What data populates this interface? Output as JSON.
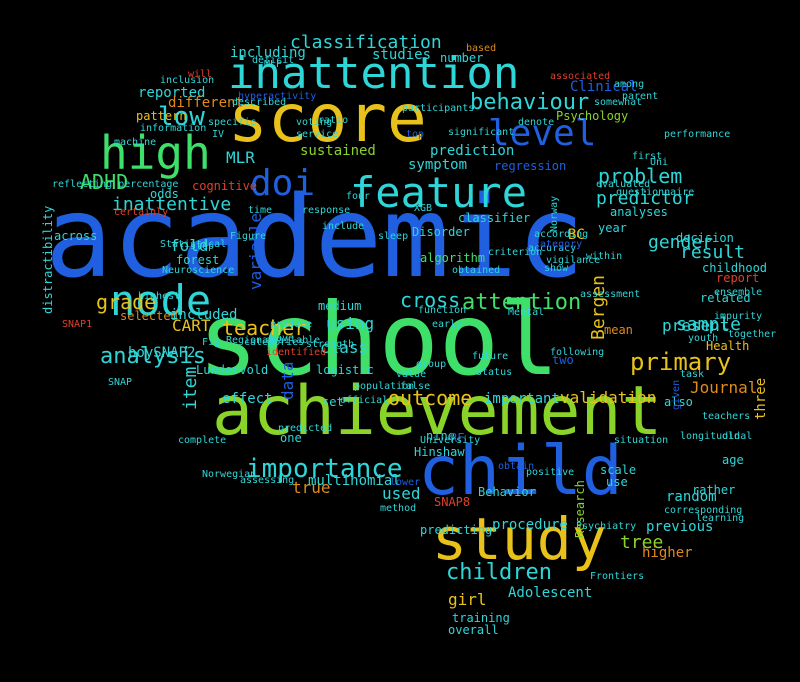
{
  "colors": {
    "background": "#000000",
    "blue": "#1f5fe0",
    "green": "#3fe06a",
    "cyan": "#2fd6d8",
    "lime": "#8ad42a",
    "yellow": "#e8c21a",
    "orange": "#e08a1a",
    "red": "#e0402a"
  },
  "words": [
    {
      "text": "academic",
      "color": "blue"
    },
    {
      "text": "school",
      "color": "green"
    },
    {
      "text": "score",
      "color": "yellow"
    },
    {
      "text": "achievement",
      "color": "lime"
    },
    {
      "text": "inattention",
      "color": "cyan"
    },
    {
      "text": "child",
      "color": "blue"
    },
    {
      "text": "study",
      "color": "yellow"
    },
    {
      "text": "high",
      "color": "green"
    },
    {
      "text": "feature",
      "color": "cyan"
    },
    {
      "text": "doi",
      "color": "blue"
    },
    {
      "text": "node",
      "color": "cyan"
    },
    {
      "text": "level",
      "color": "blue"
    },
    {
      "text": "importance",
      "color": "cyan"
    },
    {
      "text": "behaviour",
      "color": "cyan"
    },
    {
      "text": "primary",
      "color": "yellow"
    },
    {
      "text": "children",
      "color": "cyan"
    },
    {
      "text": "low",
      "color": "cyan"
    },
    {
      "text": "classification",
      "color": "cyan"
    },
    {
      "text": "ADHD",
      "color": "green"
    },
    {
      "text": "problem",
      "color": "cyan"
    },
    {
      "text": "predictor",
      "color": "cyan"
    },
    {
      "text": "analysis",
      "color": "cyan"
    },
    {
      "text": "grade",
      "color": "yellow"
    },
    {
      "text": "teacher",
      "color": "yellow"
    },
    {
      "text": "attention",
      "color": "green"
    },
    {
      "text": "sample",
      "color": "cyan"
    },
    {
      "text": "outcome",
      "color": "yellow"
    },
    {
      "text": "inattentive",
      "color": "cyan"
    },
    {
      "text": "cross",
      "color": "cyan"
    },
    {
      "text": "gender",
      "color": "cyan"
    },
    {
      "text": "result",
      "color": "cyan"
    },
    {
      "text": "tree",
      "color": "lime"
    },
    {
      "text": "present",
      "color": "cyan"
    },
    {
      "text": "validation",
      "color": "yellow"
    },
    {
      "text": "Bergen",
      "color": "yellow"
    },
    {
      "text": "item",
      "color": "cyan"
    },
    {
      "text": "fold",
      "color": "cyan"
    },
    {
      "text": "CART",
      "color": "yellow"
    },
    {
      "text": "class",
      "color": "cyan"
    },
    {
      "text": "using",
      "color": "cyan"
    },
    {
      "text": "variable",
      "color": "blue"
    },
    {
      "text": "data",
      "color": "blue"
    },
    {
      "text": "Journal",
      "color": "orange"
    },
    {
      "text": "true",
      "color": "orange"
    },
    {
      "text": "used",
      "color": "cyan"
    },
    {
      "text": "girl",
      "color": "yellow"
    },
    {
      "text": "effect",
      "color": "cyan"
    },
    {
      "text": "multinomial",
      "color": "cyan"
    },
    {
      "text": "important",
      "color": "cyan"
    },
    {
      "text": "reported",
      "color": "cyan"
    },
    {
      "text": "MLR",
      "color": "cyan"
    },
    {
      "text": "Adolescent",
      "color": "cyan"
    },
    {
      "text": "studies",
      "color": "cyan"
    },
    {
      "text": "Clinical",
      "color": "blue"
    },
    {
      "text": "Psychology",
      "color": "lime"
    },
    {
      "text": "different",
      "color": "orange"
    },
    {
      "text": "sustained",
      "color": "lime"
    },
    {
      "text": "symptom",
      "color": "cyan"
    },
    {
      "text": "prediction",
      "color": "cyan"
    },
    {
      "text": "regression",
      "color": "blue"
    },
    {
      "text": "classifier",
      "color": "cyan"
    },
    {
      "text": "Disorder",
      "color": "cyan"
    },
    {
      "text": "algorithm",
      "color": "green"
    },
    {
      "text": "decision",
      "color": "cyan"
    },
    {
      "text": "childhood",
      "color": "cyan"
    },
    {
      "text": "report",
      "color": "red"
    },
    {
      "text": "related",
      "color": "cyan"
    },
    {
      "text": "Health",
      "color": "yellow"
    },
    {
      "text": "random",
      "color": "cyan"
    },
    {
      "text": "age",
      "color": "cyan"
    },
    {
      "text": "three",
      "color": "yellow"
    },
    {
      "text": "higher",
      "color": "orange"
    },
    {
      "text": "previous",
      "color": "cyan"
    },
    {
      "text": "procedure",
      "color": "cyan"
    },
    {
      "text": "training",
      "color": "cyan"
    },
    {
      "text": "overall",
      "color": "cyan"
    },
    {
      "text": "odds",
      "color": "cyan"
    },
    {
      "text": "including",
      "color": "cyan"
    },
    {
      "text": "pattern",
      "color": "yellow"
    },
    {
      "text": "forest",
      "color": "cyan"
    },
    {
      "text": "selected",
      "color": "orange"
    },
    {
      "text": "included",
      "color": "cyan"
    },
    {
      "text": "boySNAP2",
      "color": "cyan"
    },
    {
      "text": "Lundervold",
      "color": "cyan"
    },
    {
      "text": "logistic",
      "color": "cyan"
    },
    {
      "text": "medium",
      "color": "cyan"
    },
    {
      "text": "set",
      "color": "cyan"
    },
    {
      "text": "one",
      "color": "cyan"
    },
    {
      "text": "nine",
      "color": "cyan"
    },
    {
      "text": "RF",
      "color": "blue"
    },
    {
      "text": "Hinshaw",
      "color": "cyan"
    },
    {
      "text": "two",
      "color": "blue"
    },
    {
      "text": "mean",
      "color": "orange"
    },
    {
      "text": "year",
      "color": "cyan"
    },
    {
      "text": "BC",
      "color": "yellow"
    },
    {
      "text": "analyses",
      "color": "cyan"
    },
    {
      "text": "SNAP8",
      "color": "red"
    },
    {
      "text": "Research",
      "color": "lime"
    },
    {
      "text": "predicting",
      "color": "cyan"
    },
    {
      "text": "scale",
      "color": "cyan"
    },
    {
      "text": "use",
      "color": "cyan"
    },
    {
      "text": "also",
      "color": "cyan"
    },
    {
      "text": "rather",
      "color": "cyan"
    },
    {
      "text": "Behavior",
      "color": "cyan"
    },
    {
      "text": "cognitive",
      "color": "red"
    },
    {
      "text": "distractibility",
      "color": "cyan"
    },
    {
      "text": "across",
      "color": "cyan"
    },
    {
      "text": "reflecting percentage",
      "color": "cyan"
    },
    {
      "text": "Statistical",
      "color": "cyan"
    },
    {
      "text": "Figure",
      "color": "cyan"
    },
    {
      "text": "Neuroscience",
      "color": "cyan"
    },
    {
      "text": "highest",
      "color": "cyan"
    },
    {
      "text": "hyperactivity",
      "color": "blue"
    },
    {
      "text": "ratio",
      "color": "cyan"
    },
    {
      "text": "will",
      "color": "red"
    },
    {
      "text": "deficit",
      "color": "cyan"
    },
    {
      "text": "number",
      "color": "cyan"
    },
    {
      "text": "information",
      "color": "cyan"
    },
    {
      "text": "inclusion",
      "color": "cyan"
    },
    {
      "text": "machine",
      "color": "cyan"
    },
    {
      "text": "significant",
      "color": "cyan"
    },
    {
      "text": "evaluated",
      "color": "cyan"
    },
    {
      "text": "questionnaire",
      "color": "cyan"
    },
    {
      "text": "performance",
      "color": "cyan"
    },
    {
      "text": "first",
      "color": "cyan"
    },
    {
      "text": "sleep",
      "color": "cyan"
    },
    {
      "text": "according",
      "color": "cyan"
    },
    {
      "text": "accuracy",
      "color": "cyan"
    },
    {
      "text": "vigilance",
      "color": "cyan"
    },
    {
      "text": "within",
      "color": "cyan"
    },
    {
      "text": "show",
      "color": "cyan"
    },
    {
      "text": "category",
      "color": "blue"
    },
    {
      "text": "assessment",
      "color": "cyan"
    },
    {
      "text": "Mental",
      "color": "cyan"
    },
    {
      "text": "early",
      "color": "cyan"
    },
    {
      "text": "function",
      "color": "cyan"
    },
    {
      "text": "future",
      "color": "cyan"
    },
    {
      "text": "group",
      "color": "cyan"
    },
    {
      "text": "status",
      "color": "cyan"
    },
    {
      "text": "value",
      "color": "cyan"
    },
    {
      "text": "false",
      "color": "cyan"
    },
    {
      "text": "population",
      "color": "cyan"
    },
    {
      "text": "official",
      "color": "cyan"
    },
    {
      "text": "University",
      "color": "cyan"
    },
    {
      "text": "positive",
      "color": "cyan"
    },
    {
      "text": "obtain",
      "color": "blue"
    },
    {
      "text": "categories",
      "color": "cyan"
    },
    {
      "text": "produce",
      "color": "cyan"
    },
    {
      "text": "available",
      "color": "cyan"
    },
    {
      "text": "identified",
      "color": "red"
    },
    {
      "text": "predicted",
      "color": "cyan"
    },
    {
      "text": "Norwegian",
      "color": "cyan"
    },
    {
      "text": "assessing",
      "color": "cyan"
    },
    {
      "text": "method",
      "color": "cyan"
    },
    {
      "text": "complete",
      "color": "cyan"
    },
    {
      "text": "Psychiatry",
      "color": "cyan"
    },
    {
      "text": "Frontiers",
      "color": "cyan"
    },
    {
      "text": "learning",
      "color": "cyan"
    },
    {
      "text": "corresponding",
      "color": "cyan"
    },
    {
      "text": "situation",
      "color": "cyan"
    },
    {
      "text": "given",
      "color": "blue"
    },
    {
      "text": "SNAP1",
      "color": "red"
    },
    {
      "text": "Regional",
      "color": "cyan"
    },
    {
      "text": "Wave",
      "color": "cyan"
    },
    {
      "text": "Fig",
      "color": "cyan"
    },
    {
      "text": "SNAP",
      "color": "cyan"
    },
    {
      "text": "based",
      "color": "orange"
    },
    {
      "text": "associated",
      "color": "red"
    },
    {
      "text": "participants",
      "color": "cyan"
    },
    {
      "text": "described",
      "color": "cyan"
    },
    {
      "text": "service",
      "color": "cyan"
    },
    {
      "text": "voting",
      "color": "cyan"
    },
    {
      "text": "specific",
      "color": "cyan"
    },
    {
      "text": "top",
      "color": "blue"
    },
    {
      "text": "criterion",
      "color": "cyan"
    },
    {
      "text": "lower",
      "color": "blue"
    },
    {
      "text": "somewhat",
      "color": "cyan"
    },
    {
      "text": "parent",
      "color": "cyan"
    },
    {
      "text": "among",
      "color": "cyan"
    },
    {
      "text": "denote",
      "color": "cyan"
    },
    {
      "text": "MLP",
      "color": "cyan"
    },
    {
      "text": "step",
      "color": "cyan"
    },
    {
      "text": "time",
      "color": "cyan"
    },
    {
      "text": "include",
      "color": "cyan"
    },
    {
      "text": "response",
      "color": "cyan"
    },
    {
      "text": "four",
      "color": "cyan"
    },
    {
      "text": "Uni",
      "color": "cyan"
    },
    {
      "text": "ensemble",
      "color": "cyan"
    },
    {
      "text": "impurity",
      "color": "cyan"
    },
    {
      "text": "youth",
      "color": "cyan"
    },
    {
      "text": "together",
      "color": "cyan"
    },
    {
      "text": "task",
      "color": "cyan"
    },
    {
      "text": "obtained",
      "color": "cyan"
    },
    {
      "text": "following",
      "color": "cyan"
    },
    {
      "text": "certainly",
      "color": "red"
    },
    {
      "text": "XGB",
      "color": "cyan"
    },
    {
      "text": "strength",
      "color": "cyan"
    },
    {
      "text": "Norway",
      "color": "cyan"
    },
    {
      "text": "longitudinal",
      "color": "cyan"
    },
    {
      "text": "teachers",
      "color": "cyan"
    },
    {
      "text": "old",
      "color": "cyan"
    },
    {
      "text": "IV",
      "color": "cyan"
    }
  ]
}
